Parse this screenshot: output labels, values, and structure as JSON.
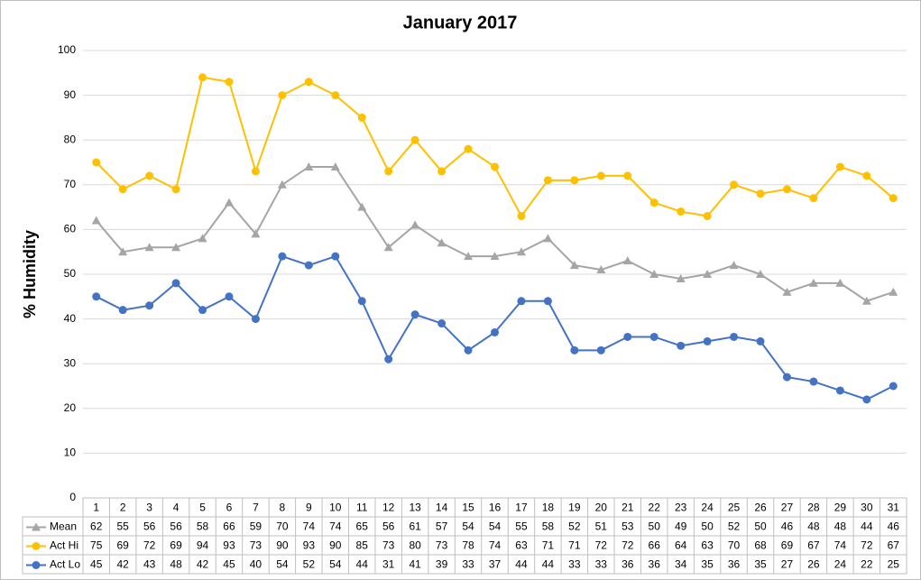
{
  "chart_data": {
    "type": "line",
    "title": "January 2017",
    "y_label": "% Humidity",
    "categories": [
      "1",
      "2",
      "3",
      "4",
      "5",
      "6",
      "7",
      "8",
      "9",
      "10",
      "11",
      "12",
      "13",
      "14",
      "15",
      "16",
      "17",
      "18",
      "19",
      "20",
      "21",
      "22",
      "23",
      "24",
      "25",
      "26",
      "27",
      "28",
      "29",
      "30",
      "31"
    ],
    "ylim": [
      0,
      100
    ],
    "yticks": [
      0,
      10,
      20,
      30,
      40,
      50,
      60,
      70,
      80,
      90,
      100
    ],
    "grid": true,
    "legend": "data-table",
    "series": [
      {
        "name": "Mean",
        "color": "#a5a5a5",
        "marker": "triangle",
        "values": [
          62,
          55,
          56,
          56,
          58,
          66,
          59,
          70,
          74,
          74,
          65,
          56,
          61,
          57,
          54,
          54,
          55,
          58,
          52,
          51,
          53,
          50,
          49,
          50,
          52,
          50,
          46,
          48,
          48,
          44,
          46
        ]
      },
      {
        "name": "Act Hi",
        "color": "#ffc000",
        "marker": "circle",
        "values": [
          75,
          69,
          72,
          69,
          94,
          93,
          73,
          90,
          93,
          90,
          85,
          73,
          80,
          73,
          78,
          74,
          63,
          71,
          71,
          72,
          72,
          66,
          64,
          63,
          70,
          68,
          69,
          67,
          74,
          72,
          67
        ]
      },
      {
        "name": "Act Lo",
        "color": "#4472c4",
        "marker": "circle",
        "values": [
          45,
          42,
          43,
          48,
          42,
          45,
          40,
          54,
          52,
          54,
          44,
          31,
          41,
          39,
          33,
          37,
          44,
          44,
          33,
          33,
          36,
          36,
          34,
          35,
          36,
          35,
          27,
          26,
          24,
          22,
          25
        ]
      }
    ]
  }
}
